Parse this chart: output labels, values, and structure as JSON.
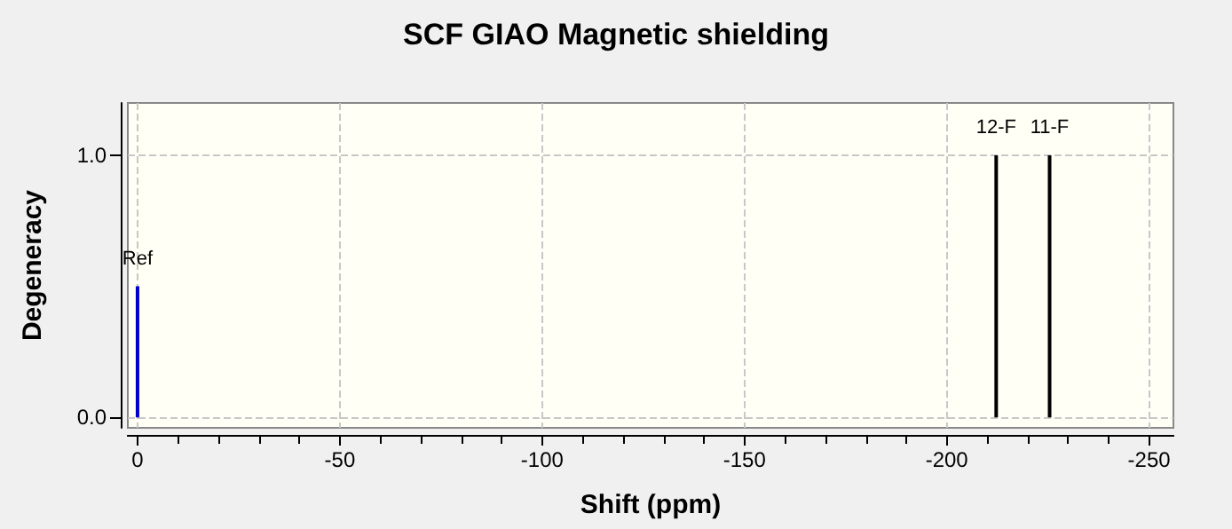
{
  "chart_data": {
    "type": "bar",
    "title": "SCF GIAO Magnetic shielding",
    "xlabel": "Shift (ppm)",
    "ylabel": "Degeneracy",
    "x": [
      0,
      -212.2,
      -225.4
    ],
    "values": [
      0.5,
      1,
      1
    ],
    "colors": [
      "#0000cc",
      "#000000",
      "#000000"
    ],
    "annotations": [
      {
        "text": "Ref",
        "x": 0,
        "y": 0.5
      },
      {
        "text": "12-F",
        "x": -212.2,
        "y": 1
      },
      {
        "text": "11-F",
        "x": -225.4,
        "y": 1
      }
    ],
    "xlim": [
      2.4,
      -256
    ],
    "ylim": [
      -0.04,
      1.2
    ],
    "xticks": [
      0,
      {
        "value": -10,
        "label": null
      },
      {
        "value": -20,
        "label": null
      },
      {
        "value": -30,
        "label": null
      },
      {
        "value": -40,
        "label": null
      },
      -50,
      {
        "value": -60,
        "label": null
      },
      {
        "value": -70,
        "label": null
      },
      {
        "value": -80,
        "label": null
      },
      {
        "value": -90,
        "label": null
      },
      -100,
      {
        "value": -110,
        "label": null
      },
      {
        "value": -120,
        "label": null
      },
      {
        "value": -130,
        "label": null
      },
      {
        "value": -140,
        "label": null
      },
      -150,
      {
        "value": -160,
        "label": null
      },
      {
        "value": -170,
        "label": null
      },
      {
        "value": -180,
        "label": null
      },
      {
        "value": -190,
        "label": null
      },
      -200,
      {
        "value": -210,
        "label": null
      },
      {
        "value": -220,
        "label": null
      },
      {
        "value": -230,
        "label": null
      },
      {
        "value": -240,
        "label": null
      },
      -250
    ],
    "yticks": [
      {
        "value": 0,
        "label": "0.0"
      },
      {
        "value": 1,
        "label": "1.0"
      }
    ],
    "grid": true
  }
}
